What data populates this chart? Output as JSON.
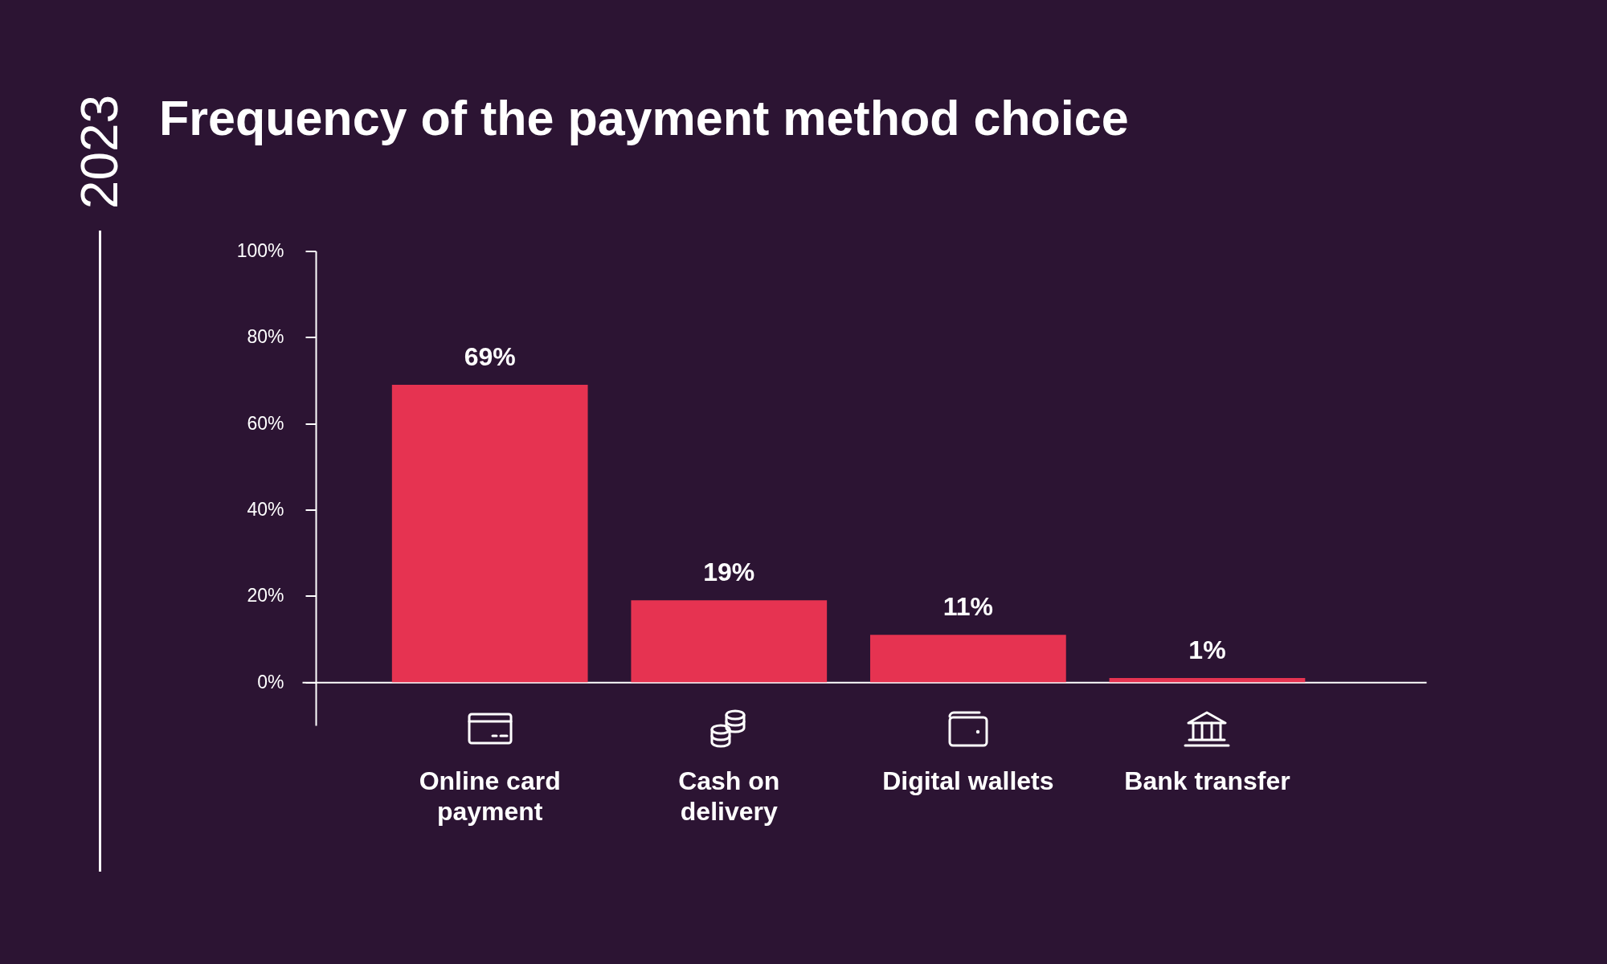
{
  "chart_data": {
    "type": "bar",
    "title": "Frequency of the payment method choice",
    "annotations": [
      "2023"
    ],
    "categories": [
      "Online card payment",
      "Cash on delivery",
      "Digital wallets",
      "Bank transfer"
    ],
    "values": [
      69,
      19,
      11,
      1
    ],
    "value_labels": [
      "69%",
      "19%",
      "11%",
      "1%"
    ],
    "color": "#e63351",
    "ylim": [
      -10,
      100
    ],
    "yticks": [
      {
        "value": 0,
        "label": "0%"
      },
      {
        "value": 20,
        "label": "20%"
      },
      {
        "value": 40,
        "label": "40%"
      },
      {
        "value": 60,
        "label": "60%"
      },
      {
        "value": 80,
        "label": "80%"
      },
      {
        "value": 100,
        "label": "100%"
      }
    ]
  }
}
